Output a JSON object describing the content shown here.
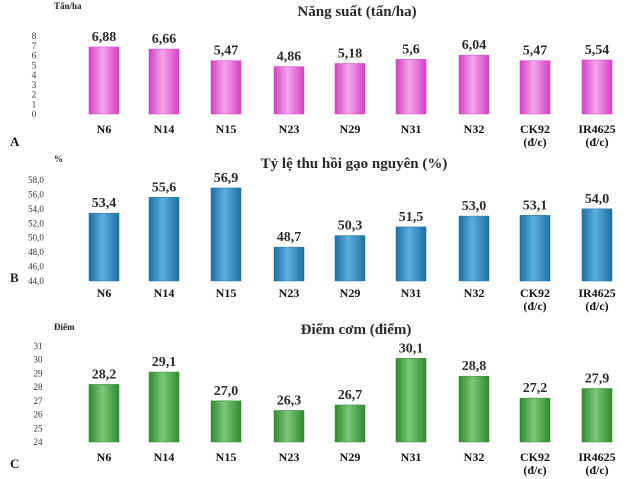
{
  "chart_data": [
    {
      "type": "bar",
      "panel": "A",
      "title": "Năng suất (tấn/ha)",
      "ylabel": "Tấn/ha",
      "categories": [
        "N6",
        "N14",
        "N15",
        "N23",
        "N29",
        "N31",
        "N32",
        "CK92\n(đ/c)",
        "IR4625\n(đ/c)"
      ],
      "values": [
        6.88,
        6.66,
        5.47,
        4.86,
        5.18,
        5.6,
        6.04,
        5.47,
        5.54
      ],
      "value_labels": [
        "6,88",
        "6,66",
        "5,47",
        "4,86",
        "5,18",
        "5,6",
        "6,04",
        "5,47",
        "5,54"
      ],
      "yticks": [
        "0",
        "1",
        "2",
        "3",
        "4",
        "5",
        "6",
        "7",
        "8"
      ],
      "ylim": [
        0,
        8
      ],
      "color": "#d63fc4",
      "color_light": "#f3a6ea"
    },
    {
      "type": "bar",
      "panel": "B",
      "title": "Tỷ lệ thu hồi gạo nguyên (%)",
      "ylabel": "%",
      "categories": [
        "N6",
        "N14",
        "N15",
        "N23",
        "N29",
        "N31",
        "N32",
        "CK92\n(đ/c)",
        "IR4625\n(đ/c)"
      ],
      "values": [
        53.4,
        55.6,
        56.9,
        48.7,
        50.3,
        51.5,
        53.0,
        53.1,
        54.0
      ],
      "value_labels": [
        "53,4",
        "55,6",
        "56,9",
        "48,7",
        "50,3",
        "51,5",
        "53,0",
        "53,1",
        "54,0"
      ],
      "yticks": [
        "44,0",
        "46,0",
        "48,0",
        "50,0",
        "52,0",
        "54,0",
        "56,0",
        "58,0"
      ],
      "ylim": [
        44,
        58
      ],
      "color": "#1f6fa3",
      "color_light": "#5ab0dc"
    },
    {
      "type": "bar",
      "panel": "C",
      "title": "Điểm cơm (điểm)",
      "ylabel": "Điểm",
      "categories": [
        "N6",
        "N14",
        "N15",
        "N23",
        "N29",
        "N31",
        "N32",
        "CK92\n(đ/c)",
        "IR4625\n(đ/c)"
      ],
      "values": [
        28.2,
        29.1,
        27.0,
        26.3,
        26.7,
        30.1,
        28.8,
        27.2,
        27.9
      ],
      "value_labels": [
        "28,2",
        "29,1",
        "27,0",
        "26,3",
        "26,7",
        "30,1",
        "28,8",
        "27,2",
        "27,9"
      ],
      "yticks": [
        "24",
        "25",
        "26",
        "27",
        "28",
        "29",
        "30",
        "31"
      ],
      "ylim": [
        24,
        31
      ],
      "color": "#2f8a2f",
      "color_light": "#7cc87a"
    }
  ]
}
